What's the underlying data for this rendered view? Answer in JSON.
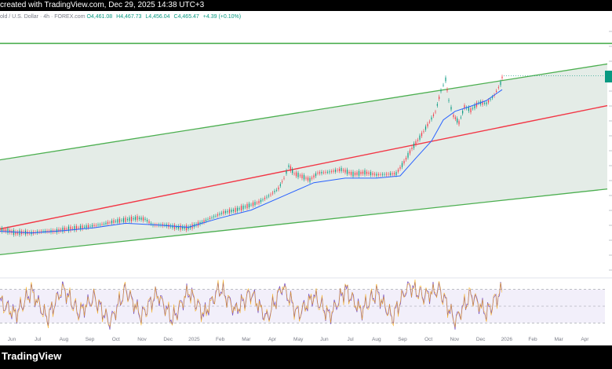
{
  "header": {
    "caption": "created with TradingView.com, Dec 29, 2025 14:38 UTC+3"
  },
  "legend": {
    "symbol": "old / U.S. Dollar · 4h · FOREX.com",
    "open": "O4,461.08",
    "high": "H4,467.73",
    "low": "L4,456.04",
    "close": "C4,465.47",
    "change": "+4.39 (+0.10%)"
  },
  "footer": {
    "brand": "TradingView"
  },
  "colors": {
    "candle_up": "#089981",
    "candle_down": "#f23645",
    "channel_line": "#4caf50",
    "channel_fill": "#e4ece7",
    "mid_line": "#f23645",
    "ma_line": "#2962ff",
    "rsi_line": "#7e57c2",
    "rsi_fill": "#f2effa"
  },
  "chart_data": [
    {
      "type": "line",
      "panel": "price",
      "x_ticks": [
        "Jun",
        "Jul",
        "Aug",
        "Sep",
        "Oct",
        "Nov",
        "Dec",
        "2025",
        "Feb",
        "Mar",
        "Apr",
        "May",
        "Jun",
        "Jul",
        "Aug",
        "Sep",
        "Oct",
        "Nov",
        "Dec",
        "2026",
        "Feb",
        "Mar",
        "Apr"
      ],
      "y_scale": "price",
      "grid": false,
      "series": [
        {
          "role": "candles",
          "points": [
            [
              0,
              4.2
            ],
            [
              10,
              4.0
            ],
            [
              20,
              3.6
            ],
            [
              30,
              3.7
            ],
            [
              40,
              3.6
            ],
            [
              55,
              3.9
            ],
            [
              70,
              3.9
            ],
            [
              85,
              4.3
            ],
            [
              100,
              4.5
            ],
            [
              115,
              4.8
            ],
            [
              130,
              5.1
            ],
            [
              145,
              5.6
            ],
            [
              160,
              5.9
            ],
            [
              175,
              6.2
            ],
            [
              185,
              6.0
            ],
            [
              195,
              5.0
            ],
            [
              210,
              5.0
            ],
            [
              225,
              4.6
            ],
            [
              240,
              4.5
            ],
            [
              255,
              5.3
            ],
            [
              270,
              6.3
            ],
            [
              285,
              7.2
            ],
            [
              300,
              7.6
            ],
            [
              315,
              8.3
            ],
            [
              330,
              9.0
            ],
            [
              345,
              10.3
            ],
            [
              355,
              11.4
            ],
            [
              362,
              13.2
            ],
            [
              368,
              15.3
            ],
            [
              375,
              14.0
            ],
            [
              385,
              13.5
            ],
            [
              395,
              12.9
            ],
            [
              405,
              14.1
            ],
            [
              420,
              14.3
            ],
            [
              435,
              14.7
            ],
            [
              450,
              13.9
            ],
            [
              465,
              14.2
            ],
            [
              480,
              13.8
            ],
            [
              495,
              13.9
            ],
            [
              505,
              14.0
            ],
            [
              515,
              16.0
            ],
            [
              525,
              18.4
            ],
            [
              535,
              20.3
            ],
            [
              545,
              22.5
            ],
            [
              555,
              24.8
            ],
            [
              562,
              28.5
            ],
            [
              568,
              30.5
            ],
            [
              572,
              26.8
            ],
            [
              578,
              24.1
            ],
            [
              585,
              22.9
            ],
            [
              592,
              25.7
            ],
            [
              600,
              25.1
            ],
            [
              610,
              26.4
            ],
            [
              620,
              26.3
            ],
            [
              630,
              27.7
            ],
            [
              638,
              29.8
            ],
            [
              642,
              31.9
            ]
          ]
        },
        {
          "role": "moving-average",
          "points": [
            [
              0,
              3.9
            ],
            [
              40,
              3.6
            ],
            [
              80,
              4.0
            ],
            [
              120,
              4.5
            ],
            [
              160,
              5.3
            ],
            [
              200,
              5.0
            ],
            [
              240,
              4.6
            ],
            [
              280,
              6.2
            ],
            [
              320,
              7.6
            ],
            [
              360,
              10.0
            ],
            [
              400,
              12.4
            ],
            [
              440,
              13.2
            ],
            [
              480,
              13.2
            ],
            [
              510,
              13.6
            ],
            [
              530,
              16.7
            ],
            [
              550,
              19.7
            ],
            [
              565,
              23.4
            ],
            [
              580,
              24.9
            ],
            [
              600,
              25.8
            ],
            [
              620,
              26.8
            ],
            [
              640,
              28.7
            ]
          ]
        },
        {
          "role": "channel-upper",
          "points": [
            [
              0,
              16.4
            ],
            [
              774,
              33.2
            ]
          ]
        },
        {
          "role": "channel-middle",
          "points": [
            [
              0,
              4.3
            ],
            [
              774,
              25.9
            ]
          ]
        },
        {
          "role": "channel-lower",
          "points": [
            [
              0,
              -0.2
            ],
            [
              774,
              11.3
            ]
          ]
        },
        {
          "role": "horizontal-level",
          "points": [
            [
              0,
              36.8
            ],
            [
              780,
              36.8
            ]
          ]
        }
      ]
    },
    {
      "type": "line",
      "panel": "rsi",
      "levels": [
        70,
        50,
        30
      ],
      "series": [
        {
          "role": "rsi",
          "points": [
            [
              0,
              55
            ],
            [
              20,
              40
            ],
            [
              40,
              68
            ],
            [
              60,
              35
            ],
            [
              80,
              72
            ],
            [
              100,
              42
            ],
            [
              120,
              60
            ],
            [
              140,
              30
            ],
            [
              160,
              70
            ],
            [
              180,
              38
            ],
            [
              200,
              65
            ],
            [
              220,
              34
            ],
            [
              240,
              68
            ],
            [
              260,
              40
            ],
            [
              280,
              72
            ],
            [
              300,
              45
            ],
            [
              320,
              66
            ],
            [
              340,
              35
            ],
            [
              360,
              74
            ],
            [
              380,
              40
            ],
            [
              400,
              62
            ],
            [
              420,
              38
            ],
            [
              440,
              70
            ],
            [
              460,
              44
            ],
            [
              480,
              66
            ],
            [
              500,
              36
            ],
            [
              520,
              75
            ],
            [
              540,
              62
            ],
            [
              560,
              70
            ],
            [
              580,
              32
            ],
            [
              600,
              64
            ],
            [
              620,
              42
            ],
            [
              640,
              70
            ]
          ]
        }
      ]
    }
  ]
}
